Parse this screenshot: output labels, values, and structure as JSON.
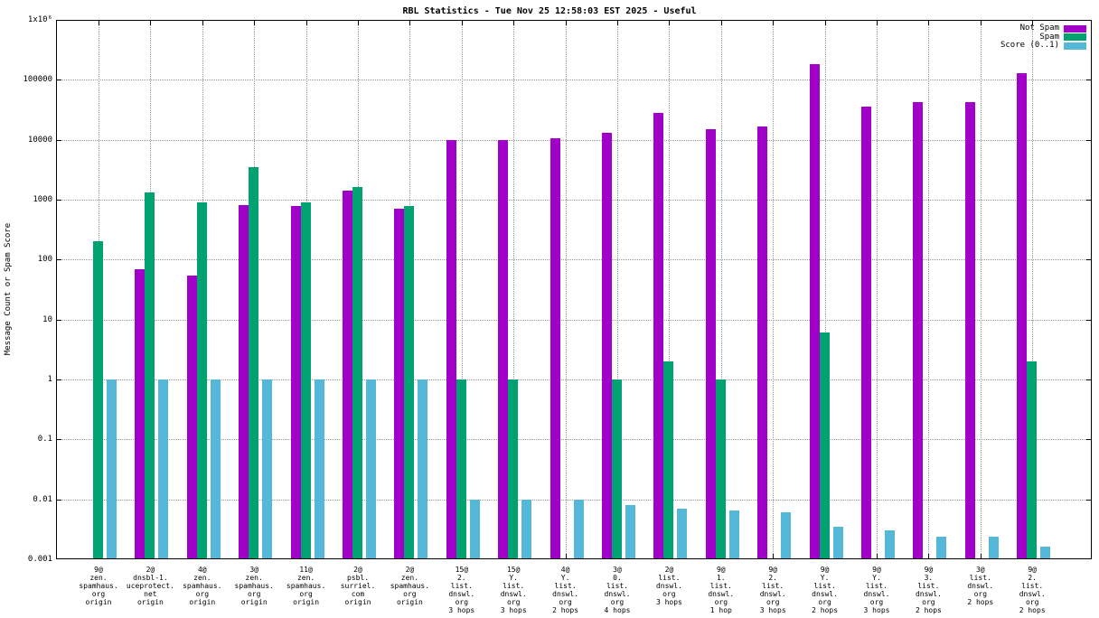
{
  "chart_data": {
    "type": "bar",
    "title": "RBL Statistics - Tue Nov 25 12:58:03 EST 2025 - Useful",
    "ylabel": "Message Count or Spam Score",
    "y_scale": "log",
    "ylim": [
      0.001,
      1000000
    ],
    "grid": true,
    "legend_position": "top-right",
    "y_tick_labels": [
      "0.001",
      "0.01",
      "0.1",
      "1",
      "10",
      "100",
      "1000",
      "10000",
      "100000",
      "1x10⁶"
    ],
    "categories": [
      [
        "9@",
        "zen.",
        "spamhaus.",
        "org",
        "origin"
      ],
      [
        "2@",
        "dnsbl-1.",
        "uceprotect.",
        "net",
        "origin"
      ],
      [
        "4@",
        "zen.",
        "spamhaus.",
        "org",
        "origin"
      ],
      [
        "3@",
        "zen.",
        "spamhaus.",
        "org",
        "origin"
      ],
      [
        "11@",
        "zen.",
        "spamhaus.",
        "org",
        "origin"
      ],
      [
        "2@",
        "psbl.",
        "surriel.",
        "com",
        "origin"
      ],
      [
        "2@",
        "zen.",
        "spamhaus.",
        "org",
        "origin"
      ],
      [
        "15@",
        "2.",
        "list.",
        "dnswl.",
        "org",
        "3 hops"
      ],
      [
        "15@",
        "Y.",
        "list.",
        "dnswl.",
        "org",
        "3 hops"
      ],
      [
        "4@",
        "Y.",
        "list.",
        "dnswl.",
        "org",
        "2 hops"
      ],
      [
        "3@",
        "0.",
        "list.",
        "dnswl.",
        "org",
        "4 hops"
      ],
      [
        "2@",
        "list.",
        "dnswl.",
        "org",
        "3 hops"
      ],
      [
        "9@",
        "1.",
        "list.",
        "dnswl.",
        "org",
        "1 hop"
      ],
      [
        "9@",
        "2.",
        "list.",
        "dnswl.",
        "org",
        "3 hops"
      ],
      [
        "9@",
        "Y.",
        "list.",
        "dnswl.",
        "org",
        "2 hops"
      ],
      [
        "9@",
        "Y.",
        "list.",
        "dnswl.",
        "org",
        "3 hops"
      ],
      [
        "9@",
        "3.",
        "list.",
        "dnswl.",
        "org",
        "2 hops"
      ],
      [
        "3@",
        "list.",
        "dnswl.",
        "org",
        "2 hops"
      ],
      [
        "9@",
        "2.",
        "list.",
        "dnswl.",
        "org",
        "2 hops"
      ]
    ],
    "series": [
      {
        "name": "Not Spam",
        "color": "#A000C8",
        "values": [
          null,
          70,
          55,
          800,
          780,
          1400,
          700,
          10000,
          10000,
          10500,
          13000,
          28000,
          15000,
          16500,
          180000,
          36000,
          43000,
          43000,
          130000
        ]
      },
      {
        "name": "Spam",
        "color": "#00A272",
        "values": [
          200,
          1300,
          900,
          3500,
          900,
          1600,
          780,
          1,
          1,
          null,
          1,
          2,
          1,
          null,
          6,
          null,
          null,
          null,
          2
        ]
      },
      {
        "name": "Score (0..1)",
        "color": "#56B8D8",
        "values": [
          1,
          1,
          1,
          1,
          1,
          1,
          1,
          0.01,
          0.01,
          0.01,
          0.008,
          0.007,
          0.0065,
          0.006,
          0.0035,
          0.003,
          0.0024,
          0.0024,
          0.0016
        ]
      }
    ]
  }
}
